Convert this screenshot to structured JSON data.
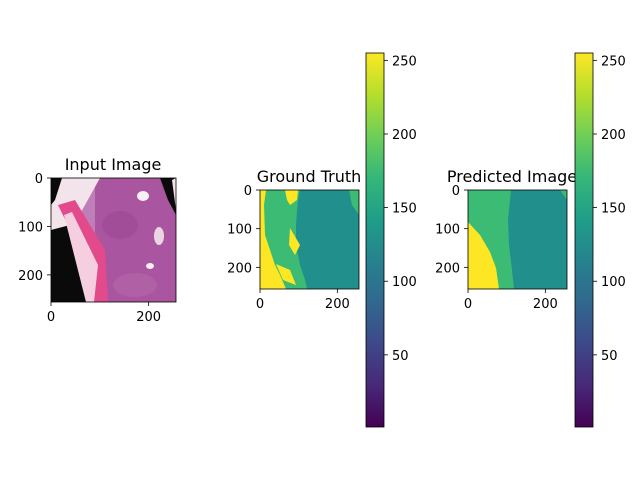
{
  "chart_data": [
    {
      "type": "image",
      "title": "Input Image",
      "xticks": [
        0,
        200
      ],
      "yticks": [
        0,
        100,
        200
      ],
      "xlim": [
        0,
        256
      ],
      "ylim": [
        256,
        0
      ],
      "content": "histology-tissue-photo"
    },
    {
      "type": "heatmap",
      "title": "Ground Truth",
      "xticks": [
        0,
        200
      ],
      "yticks": [
        0,
        100,
        200
      ],
      "xlim": [
        0,
        256
      ],
      "ylim": [
        256,
        0
      ],
      "classes": [
        {
          "value": 137,
          "color": "#21908d"
        },
        {
          "value": 175,
          "color": "#3cbb75"
        },
        {
          "value": 255,
          "color": "#fde725"
        }
      ],
      "colorbar": {
        "ticks": [
          50,
          100,
          150,
          200,
          250
        ],
        "range": [
          1,
          255
        ],
        "colormap": "viridis"
      }
    },
    {
      "type": "heatmap",
      "title": "Predicted Image",
      "xticks": [
        0,
        200
      ],
      "yticks": [
        0,
        100,
        200
      ],
      "xlim": [
        0,
        256
      ],
      "ylim": [
        256,
        0
      ],
      "classes": [
        {
          "value": 137,
          "color": "#21908d"
        },
        {
          "value": 175,
          "color": "#3cbb75"
        },
        {
          "value": 255,
          "color": "#fde725"
        }
      ],
      "colorbar": {
        "ticks": [
          50,
          100,
          150,
          200,
          250
        ],
        "range": [
          1,
          255
        ],
        "colormap": "viridis"
      }
    }
  ],
  "colors": {
    "viridis": [
      "#440154",
      "#482878",
      "#3e4989",
      "#31688e",
      "#26828e",
      "#1f9e89",
      "#35b779",
      "#6ece58",
      "#b5de2b",
      "#fde725"
    ]
  }
}
